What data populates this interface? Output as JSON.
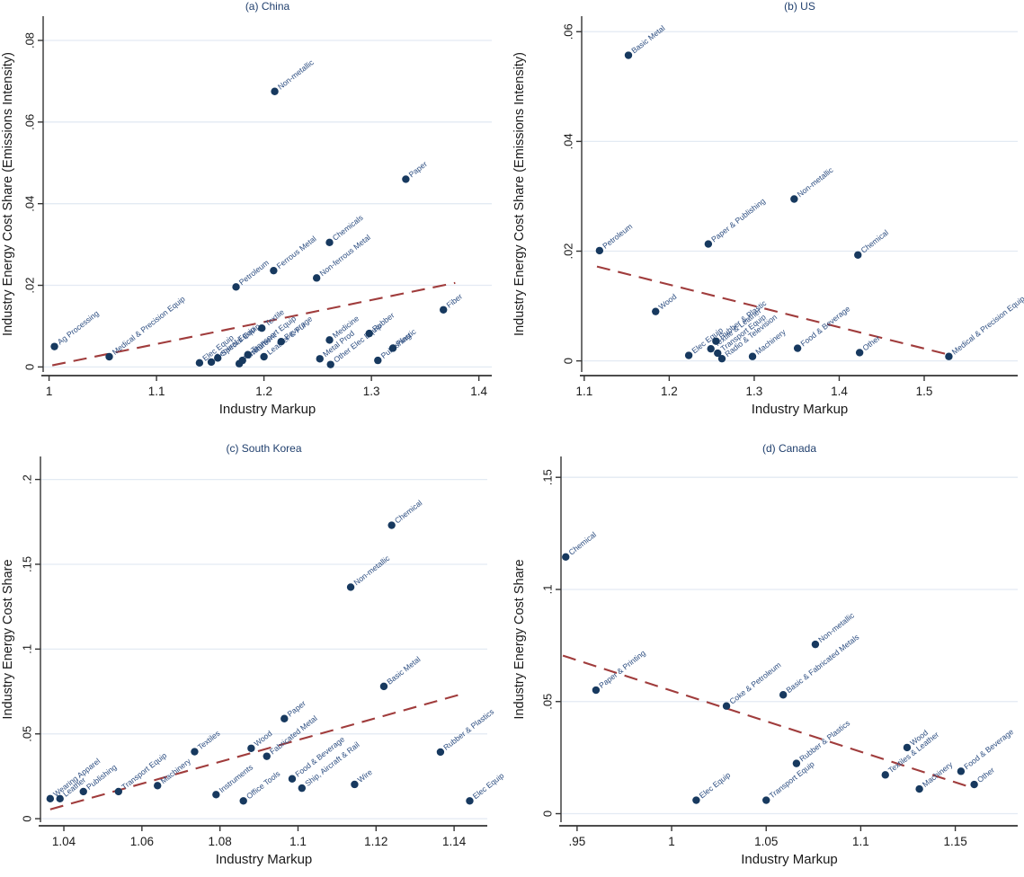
{
  "figure": {
    "xlabel": "Industry Markup",
    "ylabel_intensity": "Industry Energy Cost Share (Emissions Intensity)",
    "ylabel_share": "Industry Energy Cost Share"
  },
  "colors": {
    "point": "#17395f",
    "point_label": "#2e4f82",
    "fit_line": "#a03c3c",
    "grid": "#e3eaf3",
    "axis": "#333333",
    "title": "#21406e",
    "tick_label": "#1a1a1a"
  },
  "chart_data": [
    {
      "type": "scatter",
      "title": "(a) China",
      "xlabel": "Industry Markup",
      "ylabel": "Industry Energy Cost Share (Emissions Intensity)",
      "xlim": [
        0.9945,
        1.412
      ],
      "ylim": [
        -0.0008,
        0.0855
      ],
      "xticks": [
        1,
        1.1,
        1.2,
        1.3,
        1.4
      ],
      "xtick_labels": [
        "1",
        "1.1",
        "1.2",
        "1.3",
        "1.4"
      ],
      "yticks": [
        0,
        0.02,
        0.04,
        0.06,
        0.08
      ],
      "ytick_labels": [
        "0",
        ".02",
        ".04",
        ".06",
        ".08"
      ],
      "grid": true,
      "legend": "none",
      "fit_line": {
        "x1": 1.003,
        "y1": 0.0004,
        "x2": 1.378,
        "y2": 0.0206
      },
      "points": [
        {
          "label": "Ag Processing",
          "x": 1.005,
          "y": 0.005
        },
        {
          "label": "Medical & Precision Equip",
          "x": 1.056,
          "y": 0.0025
        },
        {
          "label": "Elec Equip",
          "x": 1.14,
          "y": 0.001
        },
        {
          "label": "General Equip",
          "x": 1.151,
          "y": 0.0012
        },
        {
          "label": "Special Equip",
          "x": 1.157,
          "y": 0.0022
        },
        {
          "label": "Petroleum",
          "x": 1.174,
          "y": 0.0196
        },
        {
          "label": "Furniture",
          "x": 1.177,
          "y": 0.0008
        },
        {
          "label": "Instrument",
          "x": 1.18,
          "y": 0.0016
        },
        {
          "label": "Transport Equip",
          "x": 1.185,
          "y": 0.003
        },
        {
          "label": "Textile",
          "x": 1.198,
          "y": 0.0095
        },
        {
          "label": "Leather & Fur",
          "x": 1.2,
          "y": 0.0025
        },
        {
          "label": "Ferrous Metal",
          "x": 1.209,
          "y": 0.0236
        },
        {
          "label": "Non-metallic",
          "x": 1.21,
          "y": 0.0675
        },
        {
          "label": "Beverage",
          "x": 1.216,
          "y": 0.0062
        },
        {
          "label": "Non-ferrous Metal",
          "x": 1.249,
          "y": 0.0218
        },
        {
          "label": "Metal Prod",
          "x": 1.252,
          "y": 0.002
        },
        {
          "label": "Chemicals",
          "x": 1.261,
          "y": 0.0305
        },
        {
          "label": "Medicine",
          "x": 1.261,
          "y": 0.0066
        },
        {
          "label": "Other Elec Equip",
          "x": 1.262,
          "y": 0.0006
        },
        {
          "label": "Rubber",
          "x": 1.298,
          "y": 0.0082
        },
        {
          "label": "Publishing",
          "x": 1.306,
          "y": 0.0016
        },
        {
          "label": "Plastic",
          "x": 1.32,
          "y": 0.0046
        },
        {
          "label": "Paper",
          "x": 1.332,
          "y": 0.046
        },
        {
          "label": "Fiber",
          "x": 1.367,
          "y": 0.014
        }
      ]
    },
    {
      "type": "scatter",
      "title": "(b) US",
      "xlabel": "Industry Markup",
      "ylabel": "Industry Energy Cost Share (Emissions Intensity)",
      "xlim": [
        1.097,
        1.61
      ],
      "ylim": [
        -0.0017,
        0.0625
      ],
      "xticks": [
        1.1,
        1.2,
        1.3,
        1.4,
        1.5
      ],
      "xtick_labels": [
        "1.1",
        "1.2",
        "1.3",
        "1.4",
        "1.5"
      ],
      "yticks": [
        0,
        0.02,
        0.04,
        0.06
      ],
      "ytick_labels": [
        "0",
        ".02",
        ".04",
        ".06"
      ],
      "grid": true,
      "legend": "none",
      "fit_line": {
        "x1": 1.115,
        "y1": 0.0172,
        "x2": 1.527,
        "y2": 0.0012
      },
      "points": [
        {
          "label": "Petroleum",
          "x": 1.118,
          "y": 0.0201
        },
        {
          "label": "Basic Metal",
          "x": 1.152,
          "y": 0.0557
        },
        {
          "label": "Wood",
          "x": 1.184,
          "y": 0.009
        },
        {
          "label": "Elec Equip",
          "x": 1.223,
          "y": 0.001
        },
        {
          "label": "Paper & Publishing",
          "x": 1.246,
          "y": 0.0213
        },
        {
          "label": "Textile & Leather",
          "x": 1.249,
          "y": 0.0022
        },
        {
          "label": "Rubber & Plastic",
          "x": 1.255,
          "y": 0.0036
        },
        {
          "label": "Transport Equip",
          "x": 1.257,
          "y": 0.0014
        },
        {
          "label": "Radio & Television",
          "x": 1.262,
          "y": 0.0004
        },
        {
          "label": "Machinery",
          "x": 1.298,
          "y": 0.0008
        },
        {
          "label": "Non-metallic",
          "x": 1.347,
          "y": 0.0295
        },
        {
          "label": "Food & Beverage",
          "x": 1.351,
          "y": 0.0023
        },
        {
          "label": "Chemical",
          "x": 1.422,
          "y": 0.0193
        },
        {
          "label": "Other",
          "x": 1.424,
          "y": 0.0015
        },
        {
          "label": "Medical & Precision Equip",
          "x": 1.529,
          "y": 0.0008
        }
      ]
    },
    {
      "type": "scatter",
      "title": "(c) South Korea",
      "xlabel": "Industry Markup",
      "ylabel": "Industry Energy Cost Share",
      "xlim": [
        1.034,
        1.1485
      ],
      "ylim": [
        -0.001,
        0.2125
      ],
      "xticks": [
        1.04,
        1.06,
        1.08,
        1.1,
        1.12,
        1.14
      ],
      "xtick_labels": [
        "1.04",
        "1.06",
        "1.08",
        "1.1",
        "1.12",
        "1.14"
      ],
      "yticks": [
        0,
        0.05,
        0.1,
        0.15,
        0.2
      ],
      "ytick_labels": [
        "0",
        ".05",
        ".1",
        ".15",
        ".2"
      ],
      "grid": true,
      "legend": "none",
      "fit_line": {
        "x1": 1.0365,
        "y1": 0.0055,
        "x2": 1.142,
        "y2": 0.0735
      },
      "points": [
        {
          "label": "Wearing Apparel",
          "x": 1.0365,
          "y": 0.0118
        },
        {
          "label": "Leather",
          "x": 1.039,
          "y": 0.0118
        },
        {
          "label": "Publishing",
          "x": 1.045,
          "y": 0.016
        },
        {
          "label": "Transport Equip",
          "x": 1.054,
          "y": 0.016
        },
        {
          "label": "Machinery",
          "x": 1.064,
          "y": 0.0195
        },
        {
          "label": "Textiles",
          "x": 1.0735,
          "y": 0.0395
        },
        {
          "label": "Instruments",
          "x": 1.079,
          "y": 0.0142
        },
        {
          "label": "Office Tools",
          "x": 1.086,
          "y": 0.0105
        },
        {
          "label": "Wood",
          "x": 1.088,
          "y": 0.0415
        },
        {
          "label": "Fabricated Metal",
          "x": 1.092,
          "y": 0.0368
        },
        {
          "label": "Paper",
          "x": 1.0965,
          "y": 0.059
        },
        {
          "label": "Food & Beverage",
          "x": 1.0985,
          "y": 0.0235
        },
        {
          "label": "Ship, Aircraft & Rail",
          "x": 1.101,
          "y": 0.018
        },
        {
          "label": "Non-metallic",
          "x": 1.1135,
          "y": 0.1365
        },
        {
          "label": "Wire",
          "x": 1.1145,
          "y": 0.0202
        },
        {
          "label": "Basic Metal",
          "x": 1.122,
          "y": 0.078
        },
        {
          "label": "Chemical",
          "x": 1.124,
          "y": 0.173
        },
        {
          "label": "Rubber & Plastics",
          "x": 1.1365,
          "y": 0.0393
        },
        {
          "label": "Elec Equip",
          "x": 1.144,
          "y": 0.0105
        }
      ]
    },
    {
      "type": "scatter",
      "title": "(d) Canada",
      "xlabel": "Industry Markup",
      "ylabel": "Industry Energy Cost Share",
      "xlim": [
        0.9415,
        1.183
      ],
      "ylim": [
        -0.003,
        0.1585
      ],
      "xticks": [
        0.95,
        1,
        1.05,
        1.1,
        1.15
      ],
      "xtick_labels": [
        ".95",
        "1",
        "1.05",
        "1.1",
        "1.15"
      ],
      "yticks": [
        0,
        0.05,
        0.1,
        0.15
      ],
      "ytick_labels": [
        "0",
        ".05",
        ".1",
        ".15"
      ],
      "grid": true,
      "legend": "none",
      "fit_line": {
        "x1": 0.9425,
        "y1": 0.0705,
        "x2": 1.158,
        "y2": 0.0118
      },
      "points": [
        {
          "label": "Chemical",
          "x": 0.944,
          "y": 0.1145
        },
        {
          "label": "Paper & Printing",
          "x": 0.96,
          "y": 0.0551
        },
        {
          "label": "Elec Equip",
          "x": 1.013,
          "y": 0.006
        },
        {
          "label": "Coke & Petroleum",
          "x": 1.029,
          "y": 0.048
        },
        {
          "label": "Transport Equip",
          "x": 1.05,
          "y": 0.006
        },
        {
          "label": "Basic & Fabricated Metals",
          "x": 1.059,
          "y": 0.053
        },
        {
          "label": "Rubber & Plastics",
          "x": 1.066,
          "y": 0.0224
        },
        {
          "label": "Non-metallic",
          "x": 1.076,
          "y": 0.0755
        },
        {
          "label": "Textiles & Leather",
          "x": 1.113,
          "y": 0.0173
        },
        {
          "label": "Wood",
          "x": 1.1245,
          "y": 0.0295
        },
        {
          "label": "Machinery",
          "x": 1.131,
          "y": 0.011
        },
        {
          "label": "Food & Beverage",
          "x": 1.153,
          "y": 0.0189
        },
        {
          "label": "Other",
          "x": 1.16,
          "y": 0.013
        }
      ]
    }
  ]
}
